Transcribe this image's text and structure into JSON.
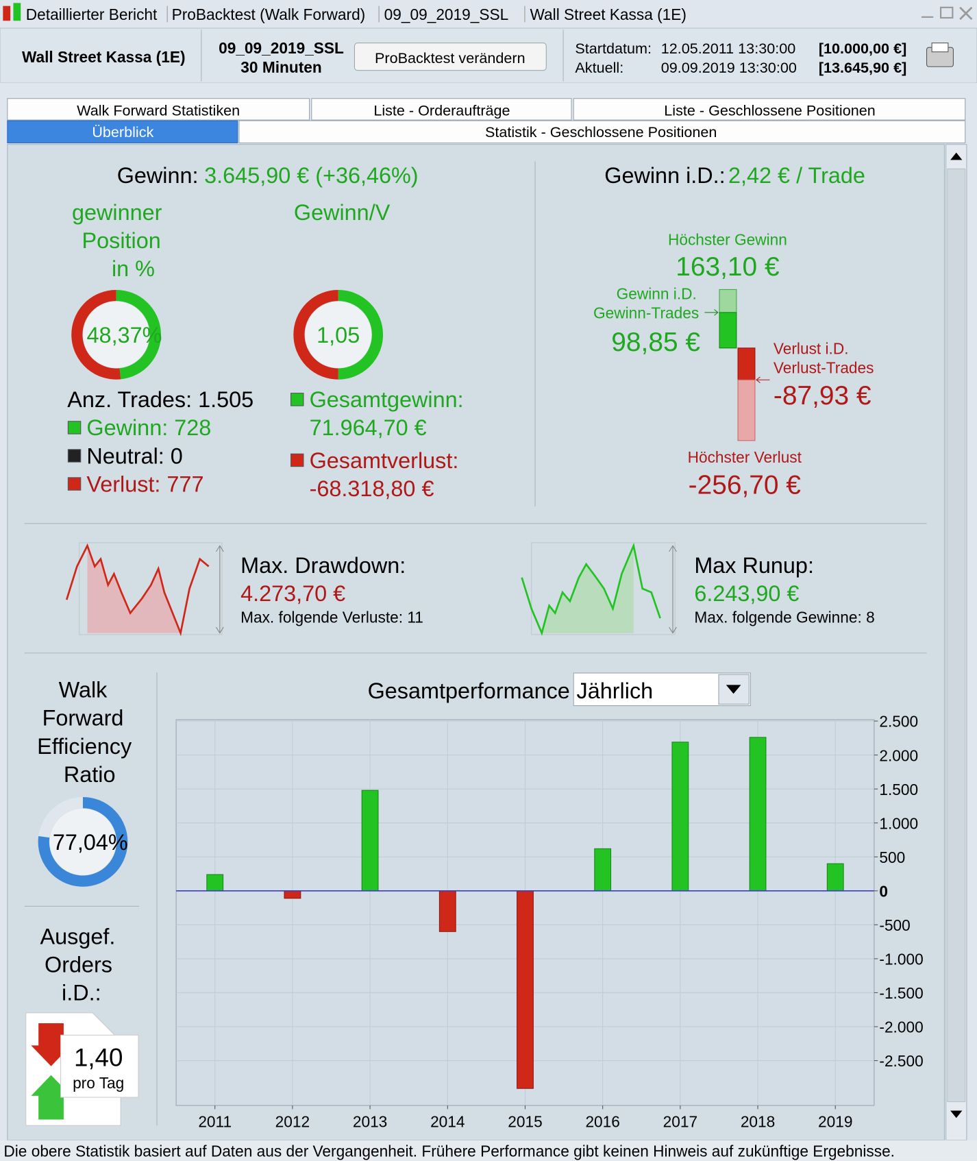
{
  "window": {
    "title_parts": [
      "Detaillierter Bericht",
      "ProBacktest (Walk Forward)",
      "09_09_2019_SSL",
      "Wall Street Kassa (1E)"
    ]
  },
  "header": {
    "instrument": "Wall Street Kassa (1E)",
    "system": "09_09_2019_SSL",
    "timeframe": "30 Minuten",
    "button": "ProBacktest verändern",
    "start_label": "Startdatum:",
    "start_date": "12.05.2011 13:30:00",
    "start_capital": "[10.000,00 €]",
    "current_label": "Aktuell:",
    "current_date": "09.09.2019 13:30:00",
    "current_capital": "[13.645,90 €]"
  },
  "tabs": [
    "Walk Forward Statistiken",
    "Liste - Orderaufträge",
    "Liste - Geschlossene Positionen",
    "Überblick",
    "Statistik - Geschlossene Positionen"
  ],
  "summary": {
    "gain_label": "Gewinn:",
    "gain_value": "3.645,90 € (+36,46%)",
    "per_trade_label": "Gewinn i.D.:",
    "per_trade_value": "2,42 € / Trade"
  },
  "winners": {
    "title": [
      "gewinner",
      "Position",
      "in %"
    ],
    "percent": {
      "value": 48.37,
      "label": "48,37%"
    }
  },
  "ratio": {
    "title": "Gewinn/V",
    "value": "1,05"
  },
  "trades": {
    "count": "Anz. Trades: 1.505",
    "wins": "Gewinn: 728",
    "neutral": "Neutral: 0",
    "losses": "Verlust: 777",
    "total_gain_label": "Gesamtgewinn:",
    "total_gain": "71.964,70 €",
    "total_loss_label": "Gesamtverlust:",
    "total_loss": "-68.318,80 €"
  },
  "extremes": {
    "max_gain_label": "Höchster Gewinn",
    "max_gain": "163,10 €",
    "avg_gain_label": [
      "Gewinn i.D.",
      "Gewinn-Trades"
    ],
    "avg_gain": "98,85 €",
    "avg_loss_label": [
      "Verlust i.D.",
      "Verlust-Trades"
    ],
    "avg_loss": "-87,93 €",
    "max_loss_label": "Höchster Verlust",
    "max_loss": "-256,70 €"
  },
  "drawdown": {
    "label": "Max. Drawdown:",
    "value": "4.273,70 €",
    "streak": "Max. folgende Verluste: 11"
  },
  "runup": {
    "label": "Max Runup:",
    "value": "6.243,90 €",
    "streak": "Max. folgende Gewinne: 8"
  },
  "efficiency": {
    "title": [
      "Walk",
      "Forward",
      "Efficiency",
      "Ratio"
    ],
    "percent": {
      "value": 77.04,
      "label": "77,04%"
    }
  },
  "orders": {
    "title": [
      "Ausgef.",
      "Orders",
      "i.D.:"
    ],
    "value": "1,40",
    "unit": "pro Tag"
  },
  "chart_data": {
    "type": "bar",
    "title": "Gesamtperformance",
    "period": "Jährlich",
    "categories": [
      "2011",
      "2012",
      "2013",
      "2014",
      "2015",
      "2016",
      "2017",
      "2018",
      "2019"
    ],
    "values": [
      240,
      -110,
      1480,
      -600,
      -2910,
      620,
      2190,
      2260,
      400
    ],
    "positive_color": "#22c322",
    "negative_color": "#d02818",
    "ylim": [
      -3160,
      2520
    ],
    "yticks": [
      {
        "value": 2500,
        "label": "2.500"
      },
      {
        "value": 2000,
        "label": "2.000"
      },
      {
        "value": 1500,
        "label": "1.500"
      },
      {
        "value": 1000,
        "label": "1.000"
      },
      500,
      0,
      -500,
      {
        "value": -1000,
        "label": "-1.000"
      },
      {
        "value": -1500,
        "label": "-1.500"
      },
      {
        "value": -2000,
        "label": "-2.000"
      },
      {
        "value": -2500,
        "label": "-2.500"
      }
    ],
    "grid": true
  },
  "footer": "Die obere Statistik basiert auf Daten aus der Vergangenheit. Frühere Performance gibt keinen Hinweis auf zukünftige Ergebnisse."
}
